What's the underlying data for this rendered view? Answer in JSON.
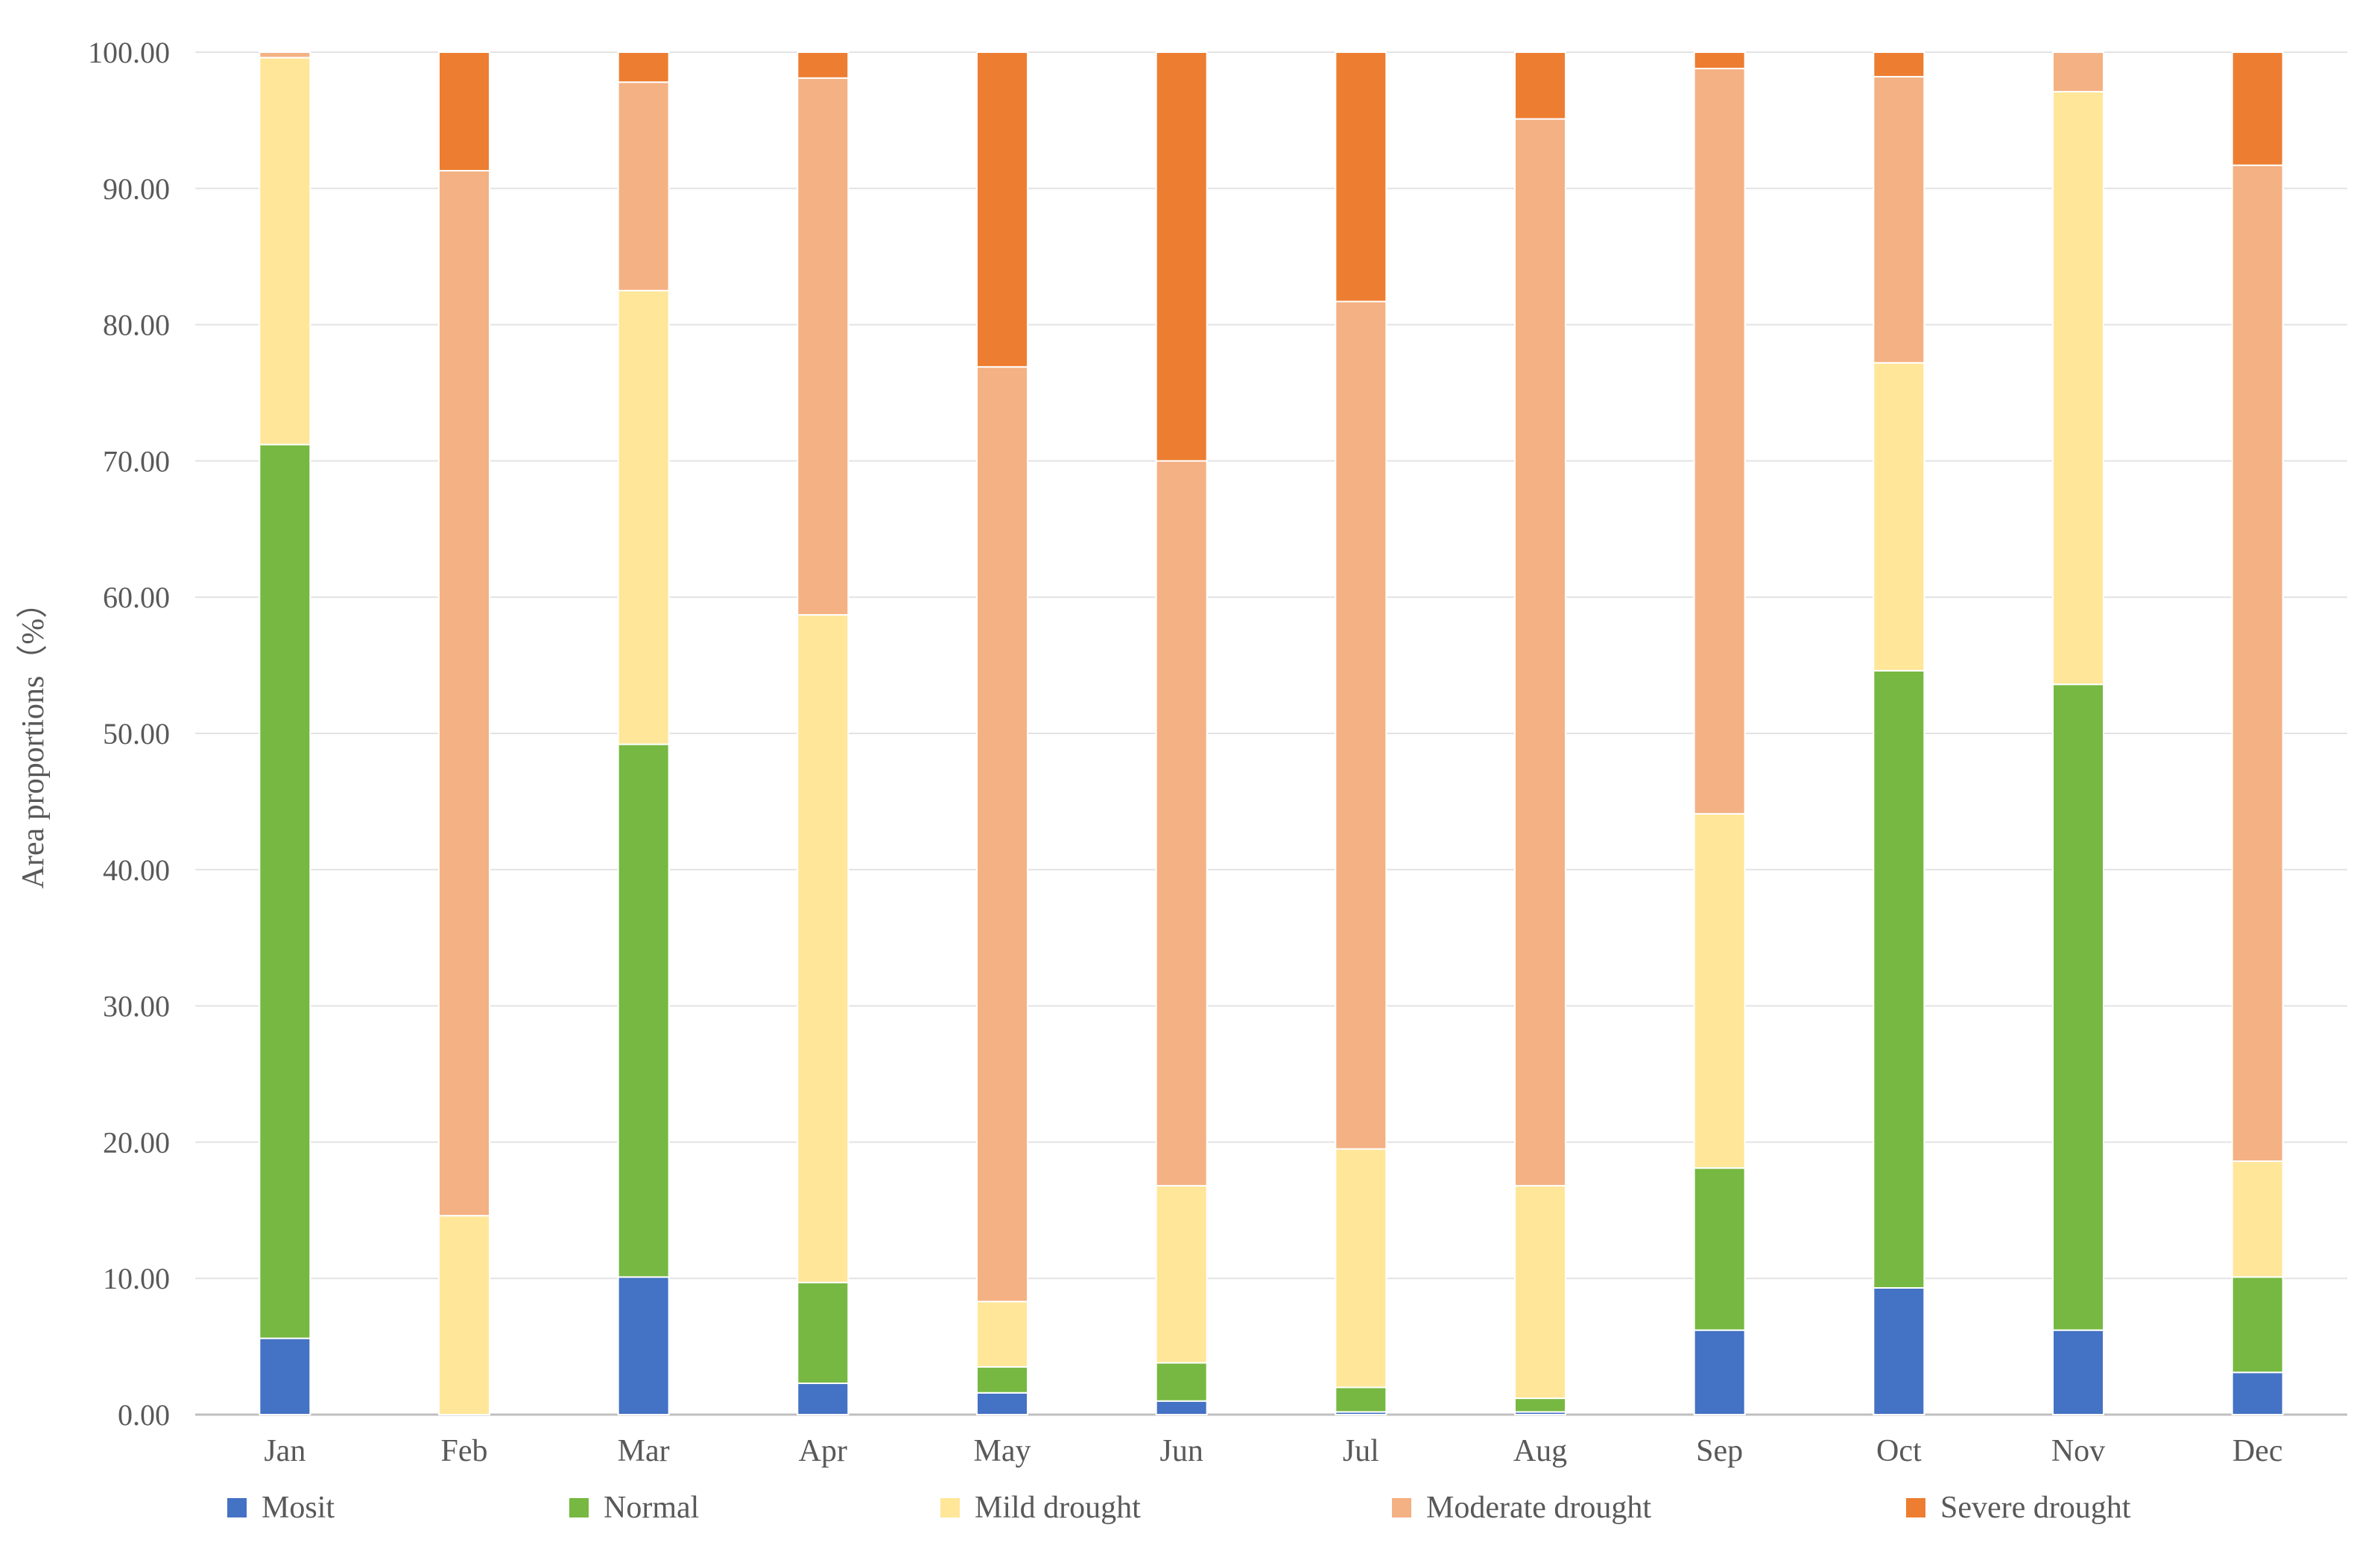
{
  "chart_data": {
    "type": "bar",
    "stacked": true,
    "title": "",
    "xlabel": "",
    "ylabel": "Area proportions（%）",
    "ylim": [
      0,
      100
    ],
    "y_ticks": [
      "0.00",
      "10.00",
      "20.00",
      "30.00",
      "40.00",
      "50.00",
      "60.00",
      "70.00",
      "80.00",
      "90.00",
      "100.00"
    ],
    "grid": true,
    "legend_position": "bottom",
    "categories": [
      "Jan",
      "Feb",
      "Mar",
      "Apr",
      "May",
      "Jun",
      "Jul",
      "Aug",
      "Sep",
      "Oct",
      "Nov",
      "Dec"
    ],
    "series": [
      {
        "name": "Mosit",
        "color": "#4472C4",
        "values": [
          5.6,
          0.0,
          10.1,
          2.3,
          1.6,
          1.0,
          0.2,
          0.2,
          6.2,
          9.3,
          6.2,
          3.1
        ]
      },
      {
        "name": "Normal",
        "color": "#76B841",
        "values": [
          65.6,
          0.0,
          39.1,
          7.4,
          1.9,
          2.8,
          1.8,
          1.0,
          11.9,
          45.3,
          47.4,
          7.0
        ]
      },
      {
        "name": "Mild drought",
        "color": "#FFE699",
        "values": [
          28.4,
          14.6,
          33.3,
          49.0,
          4.8,
          13.0,
          17.5,
          15.6,
          26.0,
          22.6,
          43.5,
          8.5
        ]
      },
      {
        "name": "Moderate drought",
        "color": "#F4B183",
        "values": [
          0.4,
          76.7,
          15.3,
          39.4,
          68.6,
          53.2,
          62.2,
          78.3,
          54.7,
          21.0,
          2.9,
          73.1
        ]
      },
      {
        "name": "Severe drought",
        "color": "#ED7D31",
        "values": [
          0.0,
          8.7,
          2.2,
          1.9,
          23.1,
          30.0,
          18.3,
          4.9,
          1.2,
          1.8,
          0.0,
          8.3
        ]
      }
    ]
  }
}
